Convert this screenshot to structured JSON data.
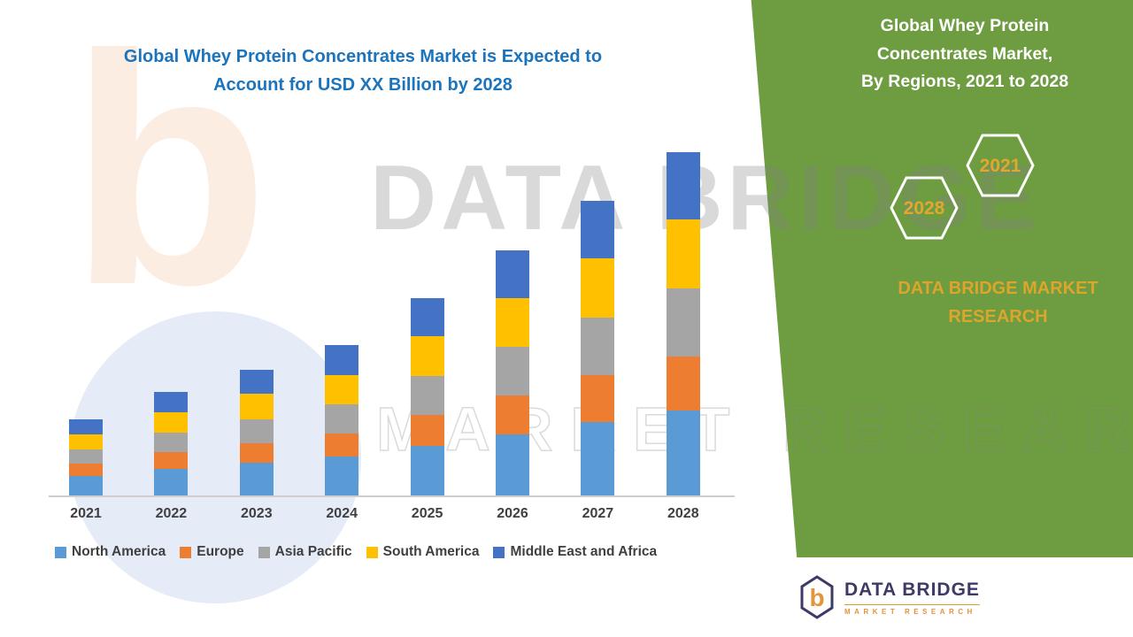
{
  "page": {
    "title_line1": "Global Whey Protein Concentrates Market is Expected to",
    "title_line2": "Account for USD XX Billion by 2028"
  },
  "side_panel": {
    "heading_line1": "Global Whey Protein",
    "heading_line2": "Concentrates Market,",
    "heading_line3": "By Regions, 2021 to 2028",
    "hexagon_back_label": "2021",
    "hexagon_front_label": "2028",
    "brand_line1": "DATA BRIDGE MARKET",
    "brand_line2": "RESEARCH",
    "panel_color": "#6D9C41",
    "accent_gold": "#E2A72E"
  },
  "watermark": {
    "line1": "DATA BRIDGE",
    "line2": "MARKET RESEARCH",
    "glyph": "b"
  },
  "footer_logo": {
    "icon_glyph": "b",
    "name": "DATA BRIDGE",
    "subtitle": "MARKET RESEARCH"
  },
  "chart_data": {
    "type": "bar",
    "stacked": true,
    "title": "Global Whey Protein Concentrates Market is Expected to Account for USD XX Billion by 2028",
    "xlabel": "",
    "ylabel": "",
    "y_axis_visible": false,
    "value_units": "relative index (no value labels shown in image; USD XX Billion unspecified)",
    "grid": false,
    "legend_position": "bottom",
    "categories": [
      "2021",
      "2022",
      "2023",
      "2024",
      "2025",
      "2026",
      "2027",
      "2028"
    ],
    "series": [
      {
        "name": "North America",
        "color": "#5B9BD5",
        "values": [
          22,
          30,
          36,
          43,
          55,
          68,
          82,
          95
        ]
      },
      {
        "name": "Europe",
        "color": "#ED7D31",
        "values": [
          13,
          18,
          22,
          26,
          35,
          43,
          52,
          60
        ]
      },
      {
        "name": "Asia Pacific",
        "color": "#A5A5A5",
        "values": [
          16,
          22,
          27,
          32,
          43,
          54,
          64,
          75
        ]
      },
      {
        "name": "South America",
        "color": "#FFC000",
        "values": [
          17,
          23,
          28,
          33,
          44,
          55,
          66,
          77
        ]
      },
      {
        "name": "Middle East and Africa",
        "color": "#4472C4",
        "values": [
          17,
          22,
          27,
          33,
          43,
          53,
          64,
          75
        ]
      }
    ],
    "totals": [
      85,
      115,
      140,
      167,
      220,
      273,
      328,
      382
    ]
  }
}
